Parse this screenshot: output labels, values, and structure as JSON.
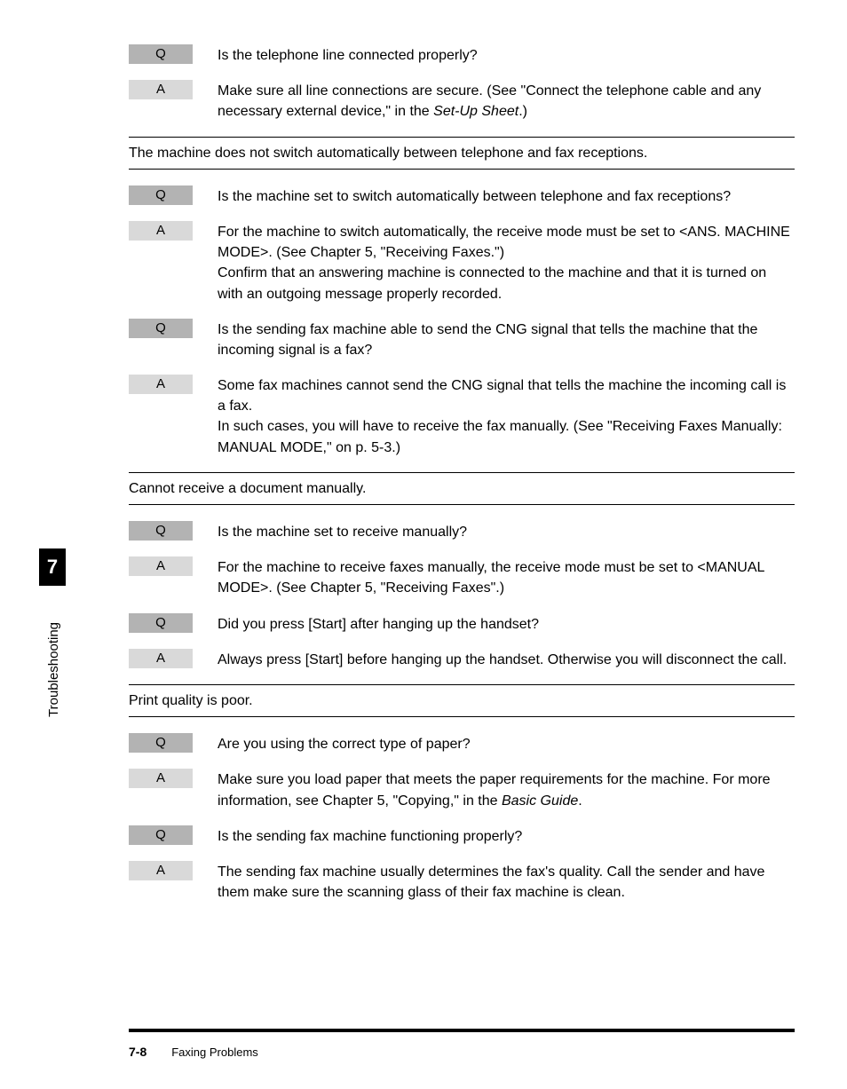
{
  "sidebar": {
    "chapter_number": "7",
    "chapter_title": "Troubleshooting"
  },
  "footer": {
    "page_number": "7-8",
    "section": "Faxing Problems"
  },
  "sections": [
    {
      "heading": null,
      "items": [
        {
          "tag": "Q",
          "text": "Is the telephone line connected properly?"
        },
        {
          "tag": "A",
          "text_pre": "Make sure all line connections are secure. (See \"Connect the telephone cable and any necessary external device,\" in the ",
          "text_italic": "Set-Up Sheet",
          "text_post": ".)"
        }
      ]
    },
    {
      "heading": "The machine does not switch automatically between telephone and fax receptions.",
      "items": [
        {
          "tag": "Q",
          "text": "Is the machine set to switch automatically between telephone and fax receptions?"
        },
        {
          "tag": "A",
          "text": "For the machine to switch automatically, the receive mode must be set to <ANS. MACHINE MODE>. (See Chapter 5, \"Receiving Faxes.\")\nConfirm that an answering machine is connected to the machine and that it is turned on with an outgoing message properly recorded."
        },
        {
          "tag": "Q",
          "text": "Is the sending fax machine able to send the CNG signal that tells the machine that the incoming signal is a fax?"
        },
        {
          "tag": "A",
          "text": "Some fax machines cannot send the CNG signal that tells the machine the incoming call is a fax.\nIn such cases, you will have to receive the fax manually. (See \"Receiving Faxes Manually: MANUAL MODE,\" on p. 5-3.)"
        }
      ]
    },
    {
      "heading": "Cannot receive a document manually.",
      "items": [
        {
          "tag": "Q",
          "text": "Is the machine set to receive manually?"
        },
        {
          "tag": "A",
          "text": "For the machine to receive faxes manually, the receive mode must be set to <MANUAL MODE>. (See Chapter 5, \"Receiving Faxes\".)"
        },
        {
          "tag": "Q",
          "text": "Did you press [Start] after hanging up the handset?"
        },
        {
          "tag": "A",
          "text": "Always press [Start] before hanging up the handset. Otherwise you will disconnect the call."
        }
      ]
    },
    {
      "heading": "Print quality is poor.",
      "items": [
        {
          "tag": "Q",
          "text": "Are you using the correct type of paper?"
        },
        {
          "tag": "A",
          "text_pre": "Make sure you load paper that meets the paper requirements for the machine. For more information, see Chapter 5, \"Copying,\" in the ",
          "text_italic": "Basic Guide",
          "text_post": "."
        },
        {
          "tag": "Q",
          "text": "Is the sending fax machine functioning properly?"
        },
        {
          "tag": "A",
          "text": "The sending fax machine usually determines the fax's quality. Call the sender and have them make sure the scanning glass of their fax machine is clean."
        }
      ]
    }
  ]
}
